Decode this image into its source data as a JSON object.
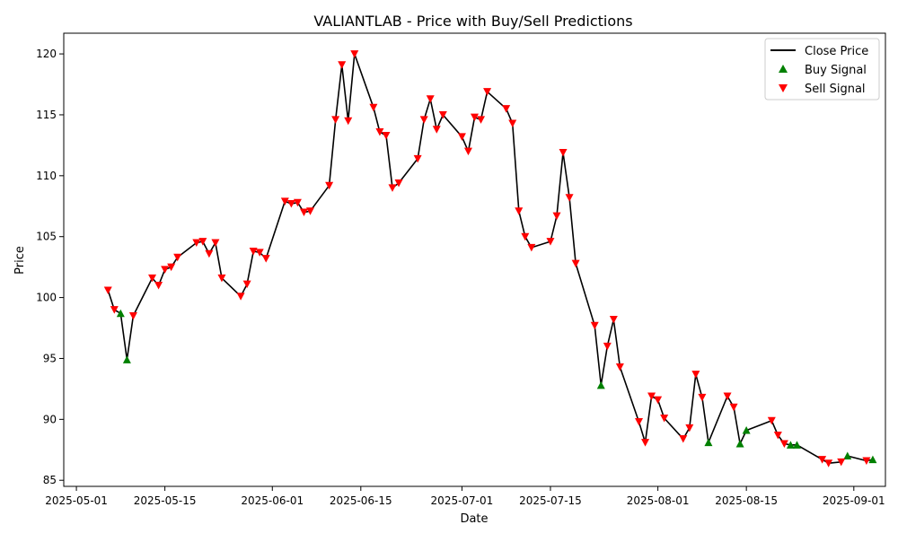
{
  "chart_data": {
    "type": "line",
    "title": "VALIANTLAB - Price with Buy/Sell Predictions",
    "xlabel": "Date",
    "ylabel": "Price",
    "xlim": [
      "2025-04-29",
      "2025-09-06"
    ],
    "ylim": [
      84.5,
      121.7
    ],
    "x_ticks": [
      "2025-05-01",
      "2025-05-15",
      "2025-06-01",
      "2025-06-15",
      "2025-07-01",
      "2025-07-15",
      "2025-08-01",
      "2025-08-15",
      "2025-09-01"
    ],
    "y_ticks": [
      85,
      90,
      95,
      100,
      105,
      110,
      115,
      120
    ],
    "grid": false,
    "legend_position": "top-right",
    "legend": {
      "close": "Close Price",
      "buy": "Buy Signal",
      "sell": "Sell Signal"
    },
    "colors": {
      "close": "#000000",
      "buy": "#008000",
      "sell": "#ff0000"
    },
    "series": [
      {
        "name": "Close Price",
        "points": [
          [
            "2025-05-06",
            100.6
          ],
          [
            "2025-05-07",
            99.0
          ],
          [
            "2025-05-08",
            98.7
          ],
          [
            "2025-05-09",
            94.9
          ],
          [
            "2025-05-10",
            98.5
          ],
          [
            "2025-05-13",
            101.6
          ],
          [
            "2025-05-14",
            101.0
          ],
          [
            "2025-05-15",
            102.3
          ],
          [
            "2025-05-16",
            102.5
          ],
          [
            "2025-05-17",
            103.3
          ],
          [
            "2025-05-20",
            104.5
          ],
          [
            "2025-05-21",
            104.6
          ],
          [
            "2025-05-22",
            103.6
          ],
          [
            "2025-05-23",
            104.5
          ],
          [
            "2025-05-24",
            101.6
          ],
          [
            "2025-05-27",
            100.1
          ],
          [
            "2025-05-28",
            101.1
          ],
          [
            "2025-05-29",
            103.8
          ],
          [
            "2025-05-30",
            103.7
          ],
          [
            "2025-05-31",
            103.2
          ],
          [
            "2025-06-03",
            107.9
          ],
          [
            "2025-06-04",
            107.7
          ],
          [
            "2025-06-05",
            107.8
          ],
          [
            "2025-06-06",
            107.0
          ],
          [
            "2025-06-07",
            107.1
          ],
          [
            "2025-06-10",
            109.2
          ],
          [
            "2025-06-11",
            114.6
          ],
          [
            "2025-06-12",
            119.1
          ],
          [
            "2025-06-13",
            114.5
          ],
          [
            "2025-06-14",
            120.0
          ],
          [
            "2025-06-17",
            115.6
          ],
          [
            "2025-06-18",
            113.6
          ],
          [
            "2025-06-19",
            113.3
          ],
          [
            "2025-06-20",
            109.0
          ],
          [
            "2025-06-21",
            109.4
          ],
          [
            "2025-06-24",
            111.4
          ],
          [
            "2025-06-25",
            114.6
          ],
          [
            "2025-06-26",
            116.3
          ],
          [
            "2025-06-27",
            113.8
          ],
          [
            "2025-06-28",
            115.0
          ],
          [
            "2025-07-01",
            113.2
          ],
          [
            "2025-07-02",
            112.0
          ],
          [
            "2025-07-03",
            114.8
          ],
          [
            "2025-07-04",
            114.6
          ],
          [
            "2025-07-05",
            116.9
          ],
          [
            "2025-07-08",
            115.5
          ],
          [
            "2025-07-09",
            114.3
          ],
          [
            "2025-07-10",
            107.1
          ],
          [
            "2025-07-11",
            105.0
          ],
          [
            "2025-07-12",
            104.1
          ],
          [
            "2025-07-15",
            104.6
          ],
          [
            "2025-07-16",
            106.7
          ],
          [
            "2025-07-17",
            111.9
          ],
          [
            "2025-07-18",
            108.2
          ],
          [
            "2025-07-19",
            102.8
          ],
          [
            "2025-07-22",
            97.7
          ],
          [
            "2025-07-23",
            92.8
          ],
          [
            "2025-07-24",
            96.0
          ],
          [
            "2025-07-25",
            98.2
          ],
          [
            "2025-07-26",
            94.3
          ],
          [
            "2025-07-29",
            89.8
          ],
          [
            "2025-07-30",
            88.1
          ],
          [
            "2025-07-31",
            91.9
          ],
          [
            "2025-08-01",
            91.6
          ],
          [
            "2025-08-02",
            90.1
          ],
          [
            "2025-08-05",
            88.4
          ],
          [
            "2025-08-06",
            89.3
          ],
          [
            "2025-08-07",
            93.7
          ],
          [
            "2025-08-08",
            91.8
          ],
          [
            "2025-08-09",
            88.1
          ],
          [
            "2025-08-12",
            91.9
          ],
          [
            "2025-08-13",
            91.0
          ],
          [
            "2025-08-14",
            88.0
          ],
          [
            "2025-08-15",
            89.1
          ],
          [
            "2025-08-19",
            89.9
          ],
          [
            "2025-08-20",
            88.7
          ],
          [
            "2025-08-21",
            88.0
          ],
          [
            "2025-08-22",
            87.9
          ],
          [
            "2025-08-23",
            87.9
          ],
          [
            "2025-08-27",
            86.7
          ],
          [
            "2025-08-28",
            86.4
          ],
          [
            "2025-08-30",
            86.5
          ],
          [
            "2025-08-31",
            87.0
          ],
          [
            "2025-09-03",
            86.6
          ],
          [
            "2025-09-04",
            86.7
          ]
        ]
      },
      {
        "name": "Buy Signal",
        "marker": "triangle-up",
        "points": [
          [
            "2025-05-08",
            98.7
          ],
          [
            "2025-05-09",
            94.9
          ],
          [
            "2025-07-23",
            92.8
          ],
          [
            "2025-08-09",
            88.1
          ],
          [
            "2025-08-14",
            88.0
          ],
          [
            "2025-08-15",
            89.1
          ],
          [
            "2025-08-22",
            87.9
          ],
          [
            "2025-08-23",
            87.9
          ],
          [
            "2025-08-31",
            87.0
          ],
          [
            "2025-09-04",
            86.7
          ]
        ]
      },
      {
        "name": "Sell Signal",
        "marker": "triangle-down",
        "points": [
          [
            "2025-05-06",
            100.6
          ],
          [
            "2025-05-07",
            99.0
          ],
          [
            "2025-05-10",
            98.5
          ],
          [
            "2025-05-13",
            101.6
          ],
          [
            "2025-05-14",
            101.0
          ],
          [
            "2025-05-15",
            102.3
          ],
          [
            "2025-05-16",
            102.5
          ],
          [
            "2025-05-17",
            103.3
          ],
          [
            "2025-05-20",
            104.5
          ],
          [
            "2025-05-21",
            104.6
          ],
          [
            "2025-05-22",
            103.6
          ],
          [
            "2025-05-23",
            104.5
          ],
          [
            "2025-05-24",
            101.6
          ],
          [
            "2025-05-27",
            100.1
          ],
          [
            "2025-05-28",
            101.1
          ],
          [
            "2025-05-29",
            103.8
          ],
          [
            "2025-05-30",
            103.7
          ],
          [
            "2025-05-31",
            103.2
          ],
          [
            "2025-06-03",
            107.9
          ],
          [
            "2025-06-04",
            107.7
          ],
          [
            "2025-06-05",
            107.8
          ],
          [
            "2025-06-06",
            107.0
          ],
          [
            "2025-06-07",
            107.1
          ],
          [
            "2025-06-10",
            109.2
          ],
          [
            "2025-06-11",
            114.6
          ],
          [
            "2025-06-12",
            119.1
          ],
          [
            "2025-06-13",
            114.5
          ],
          [
            "2025-06-14",
            120.0
          ],
          [
            "2025-06-17",
            115.6
          ],
          [
            "2025-06-18",
            113.6
          ],
          [
            "2025-06-19",
            113.3
          ],
          [
            "2025-06-20",
            109.0
          ],
          [
            "2025-06-21",
            109.4
          ],
          [
            "2025-06-24",
            111.4
          ],
          [
            "2025-06-25",
            114.6
          ],
          [
            "2025-06-26",
            116.3
          ],
          [
            "2025-06-27",
            113.8
          ],
          [
            "2025-06-28",
            115.0
          ],
          [
            "2025-07-01",
            113.2
          ],
          [
            "2025-07-02",
            112.0
          ],
          [
            "2025-07-03",
            114.8
          ],
          [
            "2025-07-04",
            114.6
          ],
          [
            "2025-07-05",
            116.9
          ],
          [
            "2025-07-08",
            115.5
          ],
          [
            "2025-07-09",
            114.3
          ],
          [
            "2025-07-10",
            107.1
          ],
          [
            "2025-07-11",
            105.0
          ],
          [
            "2025-07-12",
            104.1
          ],
          [
            "2025-07-15",
            104.6
          ],
          [
            "2025-07-16",
            106.7
          ],
          [
            "2025-07-17",
            111.9
          ],
          [
            "2025-07-18",
            108.2
          ],
          [
            "2025-07-19",
            102.8
          ],
          [
            "2025-07-22",
            97.7
          ],
          [
            "2025-07-24",
            96.0
          ],
          [
            "2025-07-25",
            98.2
          ],
          [
            "2025-07-26",
            94.3
          ],
          [
            "2025-07-29",
            89.8
          ],
          [
            "2025-07-30",
            88.1
          ],
          [
            "2025-07-31",
            91.9
          ],
          [
            "2025-08-01",
            91.6
          ],
          [
            "2025-08-02",
            90.1
          ],
          [
            "2025-08-05",
            88.4
          ],
          [
            "2025-08-06",
            89.3
          ],
          [
            "2025-08-07",
            93.7
          ],
          [
            "2025-08-08",
            91.8
          ],
          [
            "2025-08-12",
            91.9
          ],
          [
            "2025-08-13",
            91.0
          ],
          [
            "2025-08-19",
            89.9
          ],
          [
            "2025-08-20",
            88.7
          ],
          [
            "2025-08-21",
            88.0
          ],
          [
            "2025-08-27",
            86.7
          ],
          [
            "2025-08-28",
            86.4
          ],
          [
            "2025-08-30",
            86.5
          ],
          [
            "2025-09-03",
            86.6
          ]
        ]
      }
    ]
  }
}
